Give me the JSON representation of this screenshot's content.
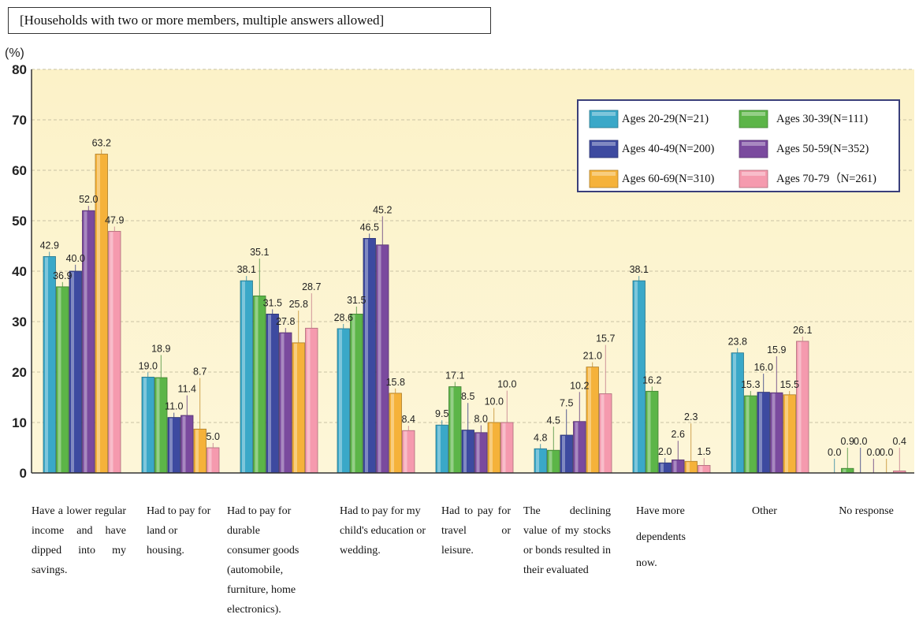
{
  "chart_data": {
    "type": "bar",
    "title": "",
    "note": "[Households with two or more members, multiple answers allowed]",
    "ylabel": "(%)",
    "xlabel": "",
    "ylim": [
      0,
      80
    ],
    "yticks": [
      0,
      10,
      20,
      30,
      40,
      50,
      60,
      70,
      80
    ],
    "grid": true,
    "legend_position": "top-right",
    "categories": [
      "Have a lower regular income and have dipped into my savings.",
      "Had to pay for land or housing.",
      "Had to pay for durable consumer goods (automobile, furniture, home electronics).",
      "Had to pay for my child's education or wedding.",
      "Had to pay for travel or leisure.",
      "The declining value of my stocks or bonds resulted in their evaluated",
      "Have more dependents now.",
      "Other",
      "No response"
    ],
    "series": [
      {
        "name": "Ages 20-29(N=21)",
        "color": "#3aa8c8",
        "values": [
          42.9,
          19.0,
          38.1,
          28.6,
          9.5,
          4.8,
          38.1,
          23.8,
          0.0
        ]
      },
      {
        "name": "Ages 30-39(N=111)",
        "color": "#5cb548",
        "values": [
          36.9,
          18.9,
          35.1,
          31.5,
          17.1,
          4.5,
          16.2,
          15.3,
          0.9
        ]
      },
      {
        "name": "Ages 40-49(N=200)",
        "color": "#3d4aa0",
        "values": [
          40.0,
          11.0,
          31.5,
          46.5,
          8.5,
          7.5,
          2.0,
          16.0,
          0.0
        ]
      },
      {
        "name": "Ages 50-59(N=352)",
        "color": "#7a4a9e",
        "values": [
          52.0,
          11.4,
          27.8,
          45.2,
          8.0,
          10.2,
          2.6,
          15.9,
          0.0
        ]
      },
      {
        "name": "Ages 60-69(N=310)",
        "color": "#f5b23a",
        "values": [
          63.2,
          8.7,
          25.8,
          15.8,
          10.0,
          21.0,
          2.3,
          15.5,
          0.0
        ]
      },
      {
        "name": "Ages 70-79（N=261)",
        "color": "#f59aae",
        "values": [
          47.9,
          5.0,
          28.7,
          8.4,
          10.0,
          15.7,
          1.5,
          26.1,
          0.4
        ]
      }
    ]
  }
}
